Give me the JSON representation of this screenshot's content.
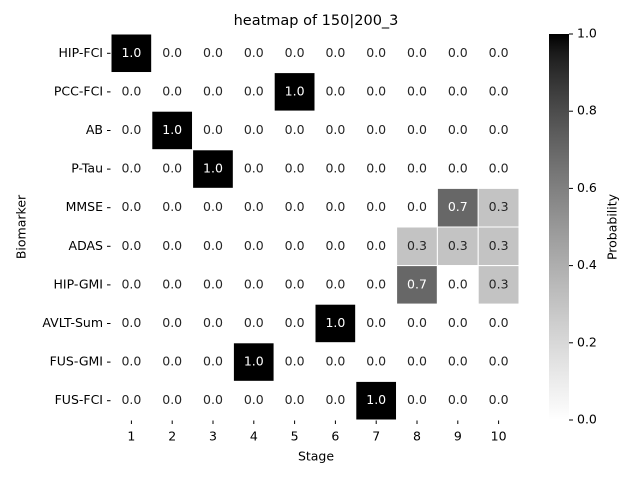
{
  "chart_data": {
    "type": "heatmap",
    "title": "heatmap of 150|200_3",
    "x_label": "Stage",
    "y_label": "Biomarker",
    "colorbar_label": "Probability",
    "x_categories": [
      "1",
      "2",
      "3",
      "4",
      "5",
      "6",
      "7",
      "8",
      "9",
      "10"
    ],
    "y_categories": [
      "HIP-FCI",
      "PCC-FCI",
      "AB",
      "P-Tau",
      "MMSE",
      "ADAS",
      "HIP-GMI",
      "AVLT-Sum",
      "FUS-GMI",
      "FUS-FCI"
    ],
    "values": [
      [
        1,
        0,
        0,
        0,
        0,
        0,
        0,
        0,
        0,
        0
      ],
      [
        0,
        0,
        0,
        0,
        1,
        0,
        0,
        0,
        0,
        0
      ],
      [
        0,
        1,
        0,
        0,
        0,
        0,
        0,
        0,
        0,
        0
      ],
      [
        0,
        0,
        1,
        0,
        0,
        0,
        0,
        0,
        0,
        0
      ],
      [
        0,
        0,
        0,
        0,
        0,
        0,
        0,
        0,
        0.7,
        0.3
      ],
      [
        0,
        0,
        0,
        0,
        0,
        0,
        0,
        0.3,
        0.3,
        0.3
      ],
      [
        0,
        0,
        0,
        0,
        0,
        0,
        0,
        0.7,
        0,
        0.3
      ],
      [
        0,
        0,
        0,
        0,
        0,
        1,
        0,
        0,
        0,
        0
      ],
      [
        0,
        0,
        0,
        1,
        0,
        0,
        0,
        0,
        0,
        0
      ],
      [
        0,
        0,
        0,
        0,
        0,
        0,
        1,
        0,
        0,
        0
      ]
    ],
    "value_labels": [
      [
        "1.0",
        "0.0",
        "0.0",
        "0.0",
        "0.0",
        "0.0",
        "0.0",
        "0.0",
        "0.0",
        "0.0"
      ],
      [
        "0.0",
        "0.0",
        "0.0",
        "0.0",
        "1.0",
        "0.0",
        "0.0",
        "0.0",
        "0.0",
        "0.0"
      ],
      [
        "0.0",
        "1.0",
        "0.0",
        "0.0",
        "0.0",
        "0.0",
        "0.0",
        "0.0",
        "0.0",
        "0.0"
      ],
      [
        "0.0",
        "0.0",
        "1.0",
        "0.0",
        "0.0",
        "0.0",
        "0.0",
        "0.0",
        "0.0",
        "0.0"
      ],
      [
        "0.0",
        "0.0",
        "0.0",
        "0.0",
        "0.0",
        "0.0",
        "0.0",
        "0.0",
        "0.7",
        "0.3"
      ],
      [
        "0.0",
        "0.0",
        "0.0",
        "0.0",
        "0.0",
        "0.0",
        "0.0",
        "0.3",
        "0.3",
        "0.3"
      ],
      [
        "0.0",
        "0.0",
        "0.0",
        "0.0",
        "0.0",
        "0.0",
        "0.0",
        "0.7",
        "0.0",
        "0.3"
      ],
      [
        "0.0",
        "0.0",
        "0.0",
        "0.0",
        "0.0",
        "1.0",
        "0.0",
        "0.0",
        "0.0",
        "0.0"
      ],
      [
        "0.0",
        "0.0",
        "0.0",
        "1.0",
        "0.0",
        "0.0",
        "0.0",
        "0.0",
        "0.0",
        "0.0"
      ],
      [
        "0.0",
        "0.0",
        "0.0",
        "0.0",
        "0.0",
        "0.0",
        "1.0",
        "0.0",
        "0.0",
        "0.0"
      ]
    ],
    "clim": [
      0,
      1
    ],
    "colorbar_ticks": [
      {
        "value": 0,
        "label": "0.0"
      },
      {
        "value": 0.2,
        "label": "0.2"
      },
      {
        "value": 0.4,
        "label": "0.4"
      },
      {
        "value": 0.6,
        "label": "0.6"
      },
      {
        "value": 0.8,
        "label": "0.8"
      },
      {
        "value": 1,
        "label": "1.0"
      }
    ],
    "colormap": [
      "#ffffff",
      "#000000"
    ]
  }
}
